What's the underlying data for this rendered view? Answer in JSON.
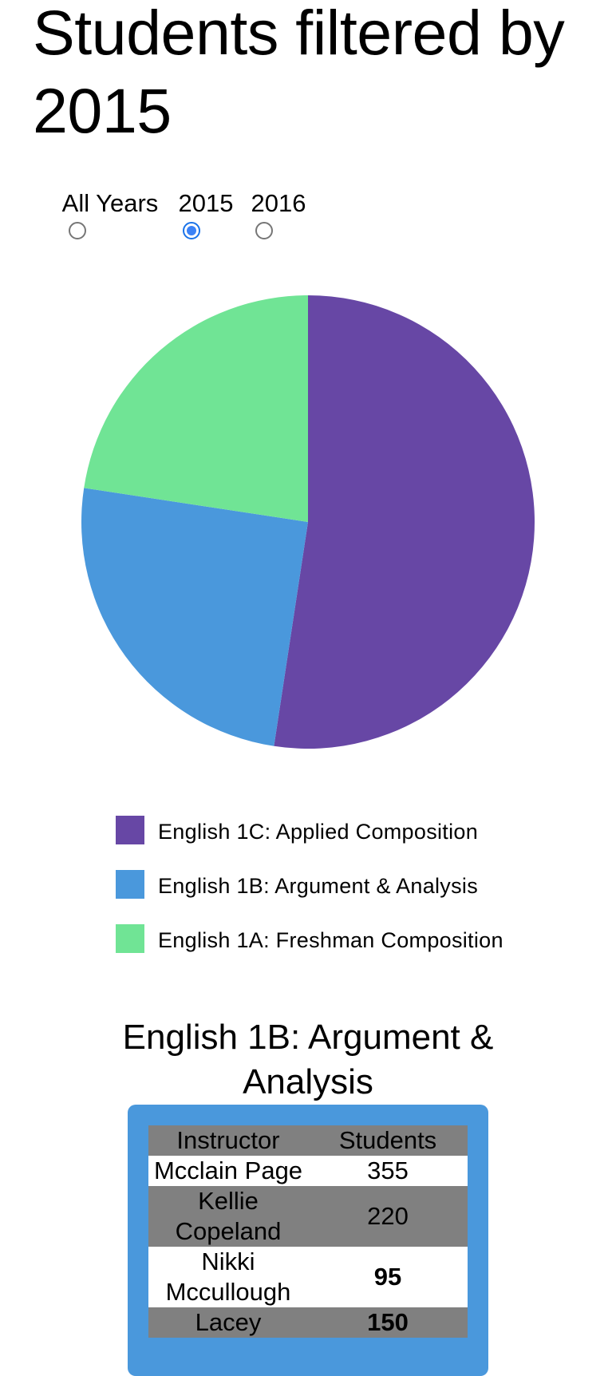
{
  "page": {
    "title": "Students filtered by 2015"
  },
  "filter": {
    "options": [
      {
        "label": "All Years",
        "checked": false
      },
      {
        "label": "2015",
        "checked": true
      },
      {
        "label": "2016",
        "checked": false
      }
    ]
  },
  "chart_data": {
    "type": "pie",
    "slices": [
      {
        "label": "English 1C: Applied Composition",
        "value": 52.4,
        "color": "#6747a5"
      },
      {
        "label": "English 1B: Argument & Analysis",
        "value": 25.0,
        "color": "#4a98dc"
      },
      {
        "label": "English 1A: Freshman Composition",
        "value": 22.6,
        "color": "#70e495"
      }
    ],
    "legend_position": "bottom"
  },
  "detail": {
    "title": "English 1B: Argument & Analysis",
    "panel_color": "#4a98dc",
    "headers": {
      "instructor": "Instructor",
      "students": "Students"
    },
    "rows": [
      {
        "instructor": "Mcclain Page",
        "students": "355",
        "emphasis": false
      },
      {
        "instructor": "Kellie Copeland",
        "students": "220",
        "emphasis": false
      },
      {
        "instructor": "Nikki Mccullough",
        "students": "95",
        "emphasis": true
      },
      {
        "instructor": "Lacey",
        "students": "150",
        "emphasis": true
      }
    ]
  }
}
